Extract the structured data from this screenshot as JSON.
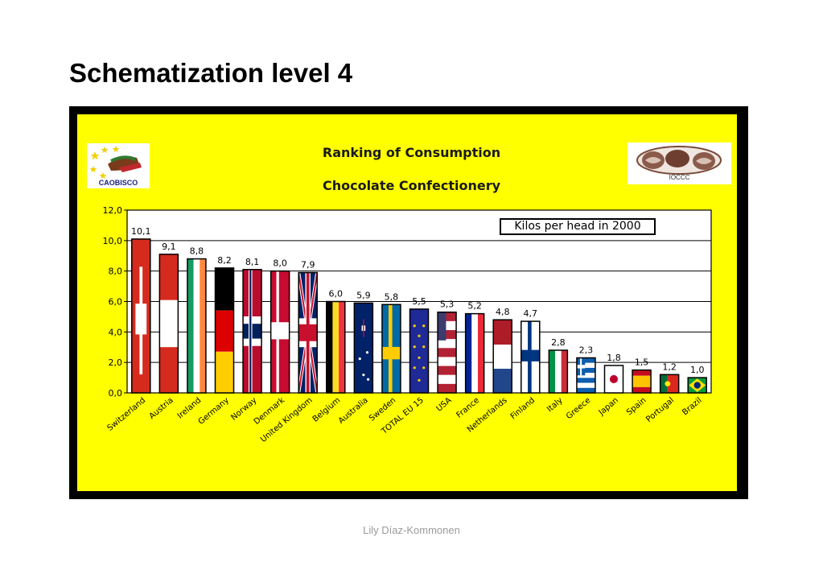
{
  "slide": {
    "title": "Schematization level 4",
    "footer": "Lily Díaz-Kommonen"
  },
  "logos": {
    "left": "CAOBISCO",
    "right": "IOCCC"
  },
  "colors": {
    "panel_background": "#ffff00",
    "frame": "#000000",
    "bar_outline": "#000000"
  },
  "chart_data": {
    "type": "bar",
    "title": "Ranking of Consumption",
    "subtitle": "Chocolate Confectionery",
    "legend_note": "Kilos per head in 2000",
    "xlabel": "",
    "ylabel": "",
    "ylim": [
      0,
      12
    ],
    "y_ticks": [
      "0,0",
      "2,0",
      "4,0",
      "6,0",
      "8,0",
      "10,0",
      "12,0"
    ],
    "grid": true,
    "categories": [
      "Switzerland",
      "Austria",
      "Ireland",
      "Germany",
      "Norway",
      "Denmark",
      "United Kingdom",
      "Belgium",
      "Australia",
      "Sweden",
      "TOTAL EU 15",
      "USA",
      "France",
      "Netherlands",
      "Finland",
      "Italy",
      "Greece",
      "Japan",
      "Spain",
      "Portugal",
      "Brazil"
    ],
    "values": [
      10.1,
      9.1,
      8.8,
      8.2,
      8.1,
      8.0,
      7.9,
      6.0,
      5.9,
      5.8,
      5.5,
      5.3,
      5.2,
      4.8,
      4.7,
      2.8,
      2.3,
      1.8,
      1.5,
      1.2,
      1.0
    ],
    "value_labels": [
      "10,1",
      "9,1",
      "8,8",
      "8,2",
      "8,1",
      "8,0",
      "7,9",
      "6,0",
      "5,9",
      "5,8",
      "5,5",
      "5,3",
      "5,2",
      "4,8",
      "4,7",
      "2,8",
      "2,3",
      "1,8",
      "1,5",
      "1,2",
      "1,0"
    ],
    "bar_fill": "national flags"
  }
}
